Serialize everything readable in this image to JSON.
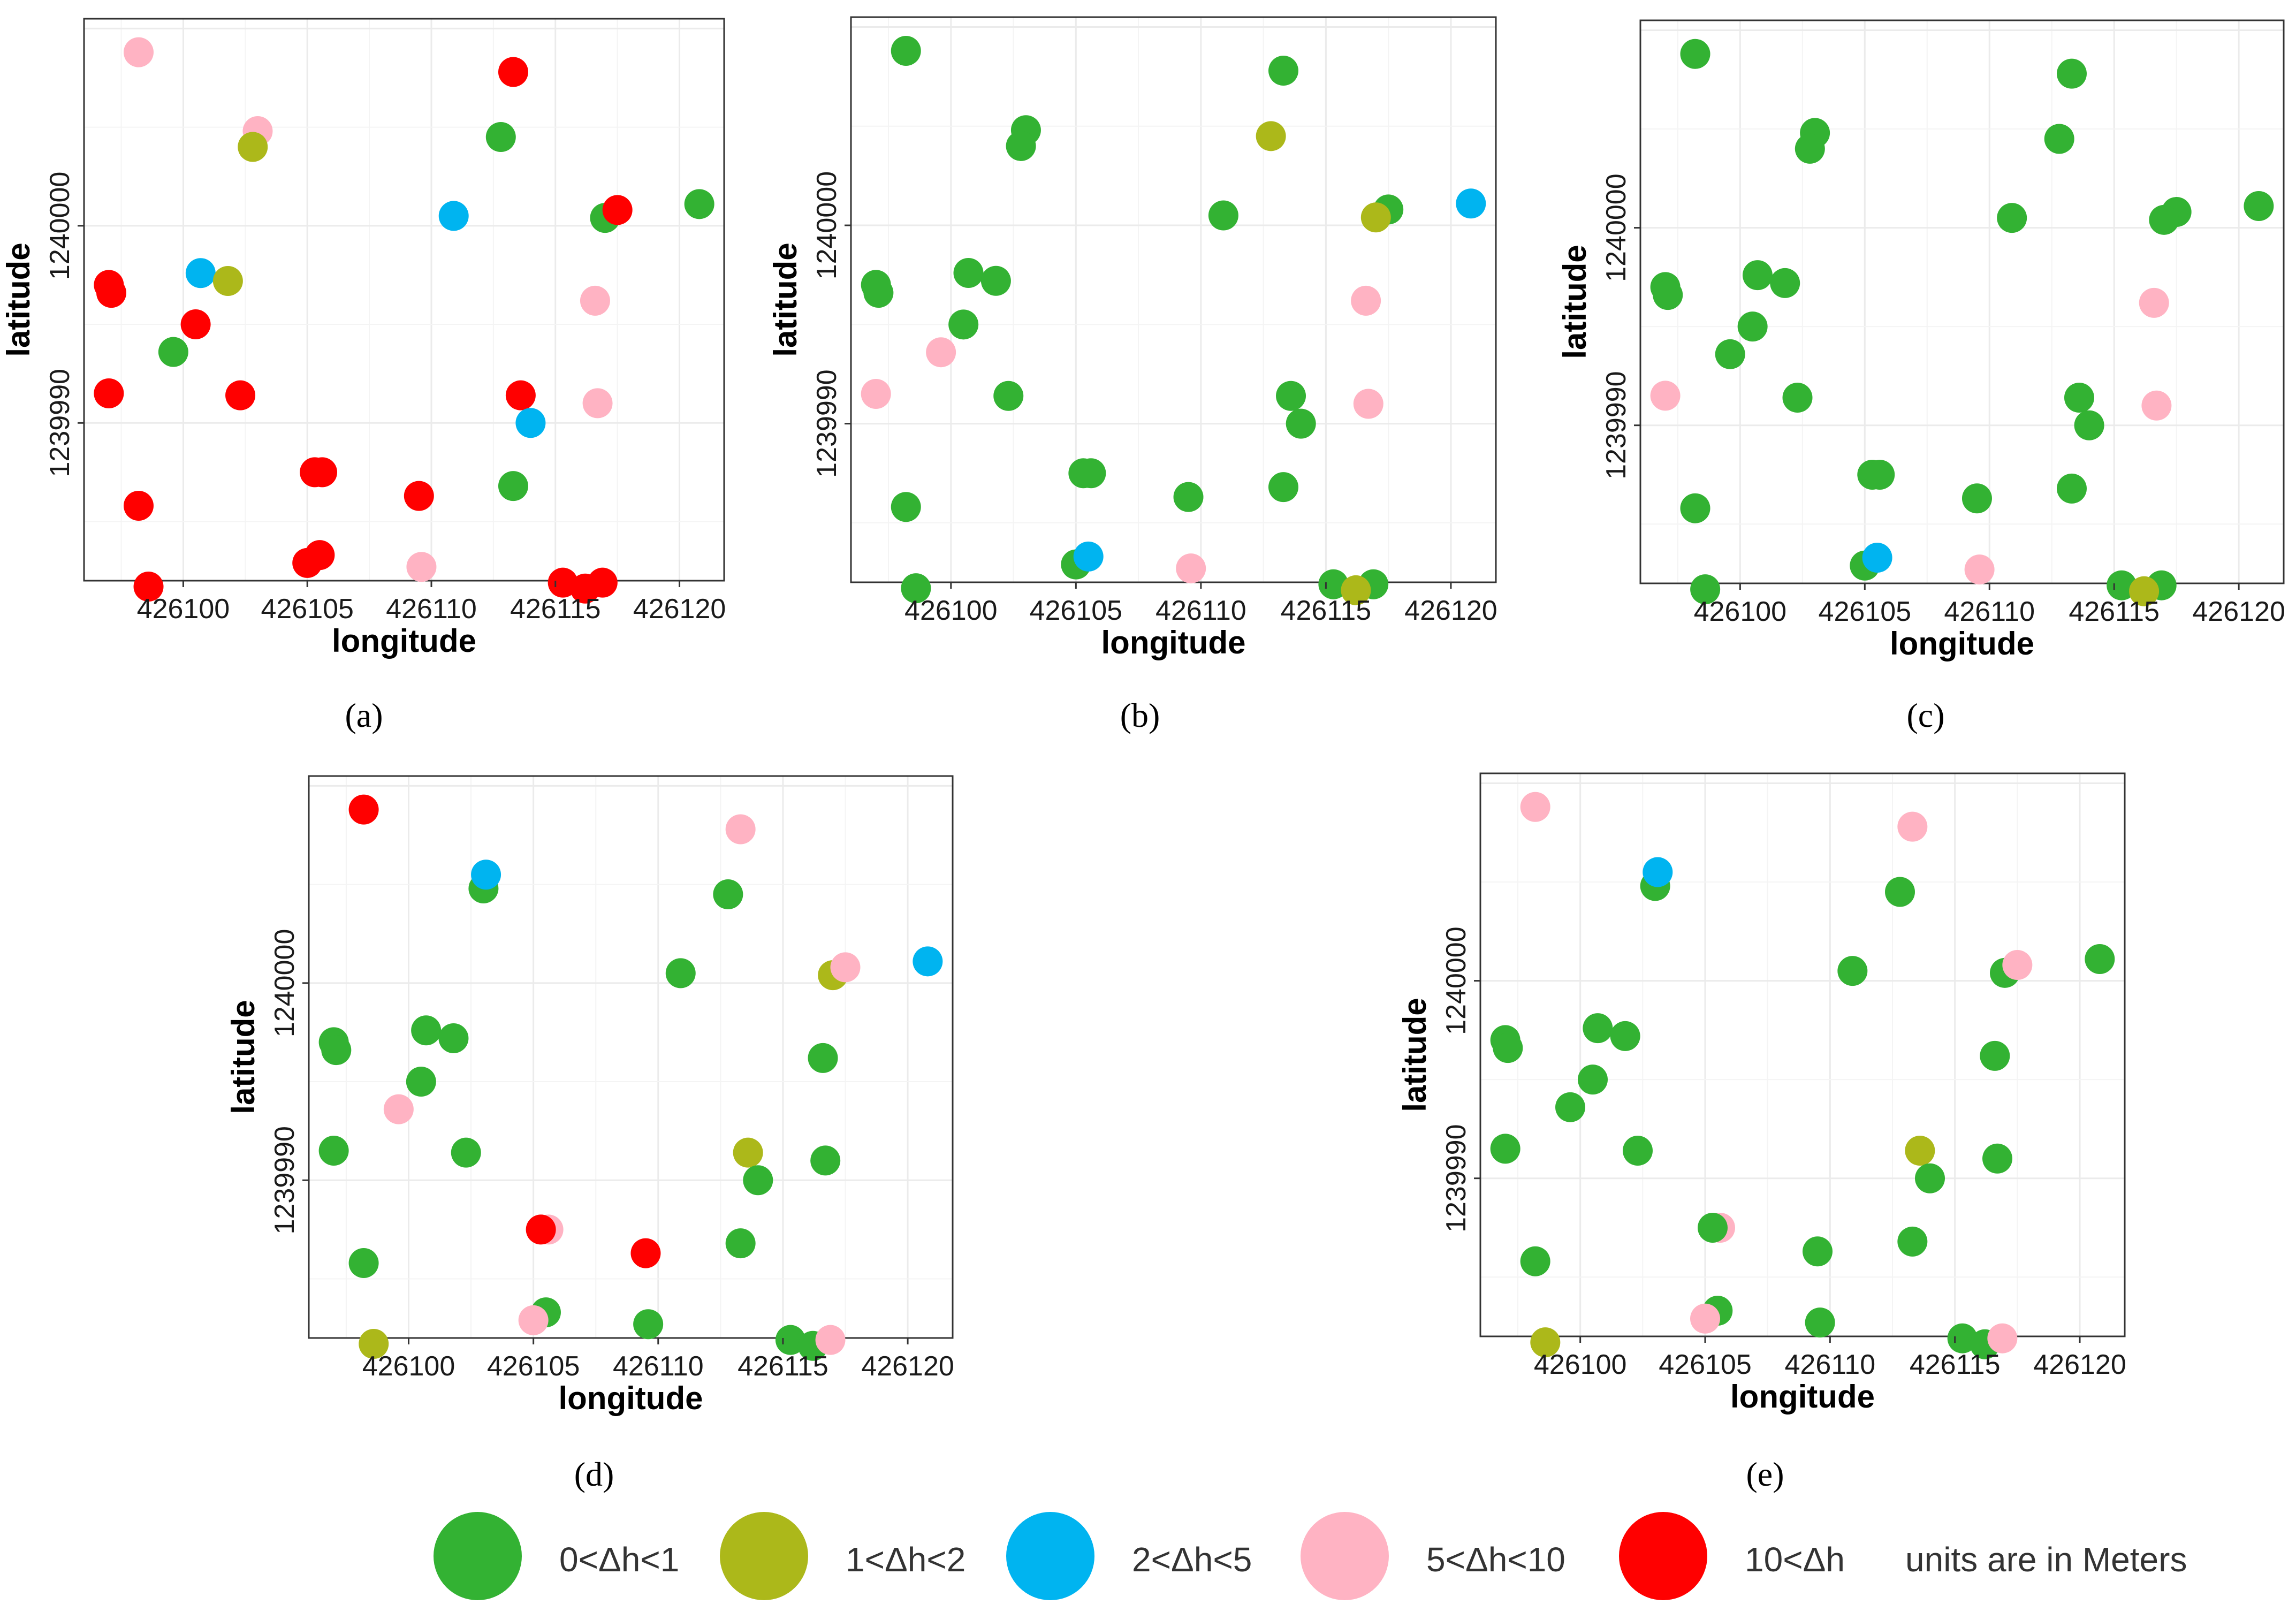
{
  "colors": {
    "c1": "#33b233",
    "c2": "#acb81a",
    "c3": "#00b4f0",
    "c4": "#ffb3c3",
    "c5": "#ff0000"
  },
  "legend": {
    "items": [
      {
        "key": "c1",
        "label": "0<Δh<1"
      },
      {
        "key": "c2",
        "label": "1<Δh<2"
      },
      {
        "key": "c3",
        "label": "2<Δh<5"
      },
      {
        "key": "c4",
        "label": "5<Δh<10"
      },
      {
        "key": "c5",
        "label": "10<Δh"
      }
    ],
    "note": "units are in Meters"
  },
  "chart_data": [
    {
      "type": "scatter",
      "panel": "(a)",
      "xlabel": "longitude",
      "ylabel": "latitude",
      "xticks": [
        "426100",
        "426105",
        "426110",
        "426115",
        "426120"
      ],
      "yticks": [
        "1239990",
        "1240000"
      ],
      "xlim": [
        426096.0,
        426121.8
      ],
      "ylim": [
        1239982.0,
        1240010.5
      ],
      "grid": true,
      "points": [
        {
          "x": 426098.2,
          "y": 1240008.8,
          "c": "c4"
        },
        {
          "x": 426113.3,
          "y": 1240007.8,
          "c": "c5"
        },
        {
          "x": 426103.0,
          "y": 1240004.8,
          "c": "c4"
        },
        {
          "x": 426102.8,
          "y": 1240004.0,
          "c": "c2"
        },
        {
          "x": 426112.8,
          "y": 1240004.5,
          "c": "c1"
        },
        {
          "x": 426120.8,
          "y": 1240001.1,
          "c": "c1"
        },
        {
          "x": 426117.0,
          "y": 1240000.4,
          "c": "c1"
        },
        {
          "x": 426117.5,
          "y": 1240000.8,
          "c": "c5"
        },
        {
          "x": 426110.9,
          "y": 1240000.5,
          "c": "c3"
        },
        {
          "x": 426100.7,
          "y": 1239997.6,
          "c": "c3"
        },
        {
          "x": 426101.8,
          "y": 1239997.2,
          "c": "c2"
        },
        {
          "x": 426097.0,
          "y": 1239997.0,
          "c": "c5"
        },
        {
          "x": 426097.1,
          "y": 1239996.6,
          "c": "c5"
        },
        {
          "x": 426116.6,
          "y": 1239996.2,
          "c": "c4"
        },
        {
          "x": 426100.5,
          "y": 1239995.0,
          "c": "c5"
        },
        {
          "x": 426099.6,
          "y": 1239993.6,
          "c": "c1"
        },
        {
          "x": 426097.0,
          "y": 1239991.5,
          "c": "c5"
        },
        {
          "x": 426102.3,
          "y": 1239991.4,
          "c": "c5"
        },
        {
          "x": 426113.6,
          "y": 1239991.4,
          "c": "c5"
        },
        {
          "x": 426116.7,
          "y": 1239991.0,
          "c": "c4"
        },
        {
          "x": 426114.0,
          "y": 1239990.0,
          "c": "c3"
        },
        {
          "x": 426105.3,
          "y": 1239987.5,
          "c": "c5"
        },
        {
          "x": 426105.6,
          "y": 1239987.5,
          "c": "c5"
        },
        {
          "x": 426113.3,
          "y": 1239986.8,
          "c": "c1"
        },
        {
          "x": 426109.5,
          "y": 1239986.3,
          "c": "c5"
        },
        {
          "x": 426098.2,
          "y": 1239985.8,
          "c": "c5"
        },
        {
          "x": 426105.5,
          "y": 1239983.3,
          "c": "c5"
        },
        {
          "x": 426105.0,
          "y": 1239982.9,
          "c": "c5"
        },
        {
          "x": 426109.6,
          "y": 1239982.7,
          "c": "c4"
        },
        {
          "x": 426115.3,
          "y": 1239981.9,
          "c": "c5"
        },
        {
          "x": 426116.2,
          "y": 1239981.6,
          "c": "c5"
        },
        {
          "x": 426116.9,
          "y": 1239981.9,
          "c": "c5"
        },
        {
          "x": 426098.6,
          "y": 1239981.7,
          "c": "c5"
        }
      ]
    },
    {
      "type": "scatter",
      "panel": "(b)",
      "xlabel": "longitude",
      "ylabel": "latitude",
      "xticks": [
        "426100",
        "426105",
        "426110",
        "426115",
        "426120"
      ],
      "yticks": [
        "1239990",
        "1240000"
      ],
      "xlim": [
        426096.0,
        426121.8
      ],
      "ylim": [
        1239982.0,
        1240010.5
      ],
      "grid": true,
      "points": [
        {
          "x": 426098.2,
          "y": 1240008.8,
          "c": "c1"
        },
        {
          "x": 426113.3,
          "y": 1240007.8,
          "c": "c1"
        },
        {
          "x": 426103.0,
          "y": 1240004.8,
          "c": "c1"
        },
        {
          "x": 426102.8,
          "y": 1240004.0,
          "c": "c1"
        },
        {
          "x": 426112.8,
          "y": 1240004.5,
          "c": "c2"
        },
        {
          "x": 426120.8,
          "y": 1240001.1,
          "c": "c3"
        },
        {
          "x": 426117.5,
          "y": 1240000.8,
          "c": "c1"
        },
        {
          "x": 426117.0,
          "y": 1240000.4,
          "c": "c2"
        },
        {
          "x": 426110.9,
          "y": 1240000.5,
          "c": "c1"
        },
        {
          "x": 426100.7,
          "y": 1239997.6,
          "c": "c1"
        },
        {
          "x": 426101.8,
          "y": 1239997.2,
          "c": "c1"
        },
        {
          "x": 426097.0,
          "y": 1239997.0,
          "c": "c1"
        },
        {
          "x": 426097.1,
          "y": 1239996.6,
          "c": "c1"
        },
        {
          "x": 426116.6,
          "y": 1239996.2,
          "c": "c4"
        },
        {
          "x": 426100.5,
          "y": 1239995.0,
          "c": "c1"
        },
        {
          "x": 426099.6,
          "y": 1239993.6,
          "c": "c4"
        },
        {
          "x": 426097.0,
          "y": 1239991.5,
          "c": "c4"
        },
        {
          "x": 426102.3,
          "y": 1239991.4,
          "c": "c1"
        },
        {
          "x": 426113.6,
          "y": 1239991.4,
          "c": "c1"
        },
        {
          "x": 426116.7,
          "y": 1239991.0,
          "c": "c4"
        },
        {
          "x": 426114.0,
          "y": 1239990.0,
          "c": "c1"
        },
        {
          "x": 426105.3,
          "y": 1239987.5,
          "c": "c1"
        },
        {
          "x": 426105.6,
          "y": 1239987.5,
          "c": "c1"
        },
        {
          "x": 426113.3,
          "y": 1239986.8,
          "c": "c1"
        },
        {
          "x": 426109.5,
          "y": 1239986.3,
          "c": "c1"
        },
        {
          "x": 426098.2,
          "y": 1239985.8,
          "c": "c1"
        },
        {
          "x": 426105.0,
          "y": 1239982.9,
          "c": "c1"
        },
        {
          "x": 426105.5,
          "y": 1239983.3,
          "c": "c3"
        },
        {
          "x": 426109.6,
          "y": 1239982.7,
          "c": "c4"
        },
        {
          "x": 426115.3,
          "y": 1239981.9,
          "c": "c1"
        },
        {
          "x": 426116.9,
          "y": 1239981.9,
          "c": "c1"
        },
        {
          "x": 426116.2,
          "y": 1239981.6,
          "c": "c2"
        },
        {
          "x": 426098.6,
          "y": 1239981.7,
          "c": "c1"
        }
      ]
    },
    {
      "type": "scatter",
      "panel": "(c)",
      "xlabel": "longitude",
      "ylabel": "latitude",
      "xticks": [
        "426100",
        "426105",
        "426110",
        "426115",
        "426120"
      ],
      "yticks": [
        "1239990",
        "1240000"
      ],
      "xlim": [
        426096.0,
        426121.8
      ],
      "ylim": [
        1239982.0,
        1240010.5
      ],
      "grid": true,
      "points": [
        {
          "x": 426098.2,
          "y": 1240008.8,
          "c": "c1"
        },
        {
          "x": 426113.3,
          "y": 1240007.8,
          "c": "c1"
        },
        {
          "x": 426103.0,
          "y": 1240004.8,
          "c": "c1"
        },
        {
          "x": 426102.8,
          "y": 1240004.0,
          "c": "c1"
        },
        {
          "x": 426112.8,
          "y": 1240004.5,
          "c": "c1"
        },
        {
          "x": 426120.8,
          "y": 1240001.1,
          "c": "c1"
        },
        {
          "x": 426117.5,
          "y": 1240000.8,
          "c": "c1"
        },
        {
          "x": 426117.0,
          "y": 1240000.4,
          "c": "c1"
        },
        {
          "x": 426110.9,
          "y": 1240000.5,
          "c": "c1"
        },
        {
          "x": 426100.7,
          "y": 1239997.6,
          "c": "c1"
        },
        {
          "x": 426101.8,
          "y": 1239997.2,
          "c": "c1"
        },
        {
          "x": 426097.0,
          "y": 1239997.0,
          "c": "c1"
        },
        {
          "x": 426097.1,
          "y": 1239996.6,
          "c": "c1"
        },
        {
          "x": 426116.6,
          "y": 1239996.2,
          "c": "c4"
        },
        {
          "x": 426100.5,
          "y": 1239995.0,
          "c": "c1"
        },
        {
          "x": 426099.6,
          "y": 1239993.6,
          "c": "c1"
        },
        {
          "x": 426097.0,
          "y": 1239991.5,
          "c": "c4"
        },
        {
          "x": 426102.3,
          "y": 1239991.4,
          "c": "c1"
        },
        {
          "x": 426113.6,
          "y": 1239991.4,
          "c": "c1"
        },
        {
          "x": 426116.7,
          "y": 1239991.0,
          "c": "c4"
        },
        {
          "x": 426114.0,
          "y": 1239990.0,
          "c": "c1"
        },
        {
          "x": 426105.3,
          "y": 1239987.5,
          "c": "c1"
        },
        {
          "x": 426105.6,
          "y": 1239987.5,
          "c": "c1"
        },
        {
          "x": 426113.3,
          "y": 1239986.8,
          "c": "c1"
        },
        {
          "x": 426109.5,
          "y": 1239986.3,
          "c": "c1"
        },
        {
          "x": 426098.2,
          "y": 1239985.8,
          "c": "c1"
        },
        {
          "x": 426105.0,
          "y": 1239982.9,
          "c": "c1"
        },
        {
          "x": 426105.5,
          "y": 1239983.3,
          "c": "c3"
        },
        {
          "x": 426109.6,
          "y": 1239982.7,
          "c": "c4"
        },
        {
          "x": 426115.3,
          "y": 1239981.9,
          "c": "c1"
        },
        {
          "x": 426116.9,
          "y": 1239981.9,
          "c": "c1"
        },
        {
          "x": 426116.2,
          "y": 1239981.6,
          "c": "c2"
        },
        {
          "x": 426098.6,
          "y": 1239981.7,
          "c": "c1"
        }
      ]
    },
    {
      "type": "scatter",
      "panel": "(d)",
      "xlabel": "longitude",
      "ylabel": "latitude",
      "xticks": [
        "426100",
        "426105",
        "426110",
        "426115",
        "426120"
      ],
      "yticks": [
        "1239990",
        "1240000"
      ],
      "xlim": [
        426096.0,
        426121.8
      ],
      "ylim": [
        1239982.0,
        1240010.5
      ],
      "grid": true,
      "points": [
        {
          "x": 426098.2,
          "y": 1240008.8,
          "c": "c5"
        },
        {
          "x": 426113.3,
          "y": 1240007.8,
          "c": "c4"
        },
        {
          "x": 426103.0,
          "y": 1240004.8,
          "c": "c1"
        },
        {
          "x": 426103.1,
          "y": 1240005.5,
          "c": "c3"
        },
        {
          "x": 426112.8,
          "y": 1240004.5,
          "c": "c1"
        },
        {
          "x": 426120.8,
          "y": 1240001.1,
          "c": "c3"
        },
        {
          "x": 426117.0,
          "y": 1240000.4,
          "c": "c2"
        },
        {
          "x": 426117.5,
          "y": 1240000.8,
          "c": "c4"
        },
        {
          "x": 426110.9,
          "y": 1240000.5,
          "c": "c1"
        },
        {
          "x": 426100.7,
          "y": 1239997.6,
          "c": "c1"
        },
        {
          "x": 426101.8,
          "y": 1239997.2,
          "c": "c1"
        },
        {
          "x": 426097.0,
          "y": 1239997.0,
          "c": "c1"
        },
        {
          "x": 426097.1,
          "y": 1239996.6,
          "c": "c1"
        },
        {
          "x": 426116.6,
          "y": 1239996.2,
          "c": "c1"
        },
        {
          "x": 426100.5,
          "y": 1239995.0,
          "c": "c1"
        },
        {
          "x": 426099.6,
          "y": 1239993.6,
          "c": "c4"
        },
        {
          "x": 426097.0,
          "y": 1239991.5,
          "c": "c1"
        },
        {
          "x": 426102.3,
          "y": 1239991.4,
          "c": "c1"
        },
        {
          "x": 426113.6,
          "y": 1239991.4,
          "c": "c2"
        },
        {
          "x": 426116.7,
          "y": 1239991.0,
          "c": "c1"
        },
        {
          "x": 426114.0,
          "y": 1239990.0,
          "c": "c1"
        },
        {
          "x": 426105.6,
          "y": 1239987.5,
          "c": "c4"
        },
        {
          "x": 426105.3,
          "y": 1239987.5,
          "c": "c5"
        },
        {
          "x": 426113.3,
          "y": 1239986.8,
          "c": "c1"
        },
        {
          "x": 426109.5,
          "y": 1239986.3,
          "c": "c5"
        },
        {
          "x": 426098.2,
          "y": 1239985.8,
          "c": "c1"
        },
        {
          "x": 426105.5,
          "y": 1239983.3,
          "c": "c1"
        },
        {
          "x": 426105.0,
          "y": 1239982.9,
          "c": "c4"
        },
        {
          "x": 426109.6,
          "y": 1239982.7,
          "c": "c1"
        },
        {
          "x": 426115.3,
          "y": 1239981.9,
          "c": "c1"
        },
        {
          "x": 426116.2,
          "y": 1239981.6,
          "c": "c1"
        },
        {
          "x": 426116.9,
          "y": 1239981.9,
          "c": "c4"
        },
        {
          "x": 426098.6,
          "y": 1239981.7,
          "c": "c2"
        }
      ]
    },
    {
      "type": "scatter",
      "panel": "(e)",
      "xlabel": "longitude",
      "ylabel": "latitude",
      "xticks": [
        "426100",
        "426105",
        "426110",
        "426115",
        "426120"
      ],
      "yticks": [
        "1239990",
        "1240000"
      ],
      "xlim": [
        426096.0,
        426121.8
      ],
      "ylim": [
        1239982.0,
        1240010.5
      ],
      "grid": true,
      "points": [
        {
          "x": 426098.2,
          "y": 1240008.8,
          "c": "c4"
        },
        {
          "x": 426113.3,
          "y": 1240007.8,
          "c": "c4"
        },
        {
          "x": 426103.0,
          "y": 1240004.8,
          "c": "c1"
        },
        {
          "x": 426103.1,
          "y": 1240005.5,
          "c": "c3"
        },
        {
          "x": 426112.8,
          "y": 1240004.5,
          "c": "c1"
        },
        {
          "x": 426120.8,
          "y": 1240001.1,
          "c": "c1"
        },
        {
          "x": 426117.0,
          "y": 1240000.4,
          "c": "c1"
        },
        {
          "x": 426117.5,
          "y": 1240000.8,
          "c": "c4"
        },
        {
          "x": 426110.9,
          "y": 1240000.5,
          "c": "c1"
        },
        {
          "x": 426100.7,
          "y": 1239997.6,
          "c": "c1"
        },
        {
          "x": 426101.8,
          "y": 1239997.2,
          "c": "c1"
        },
        {
          "x": 426097.0,
          "y": 1239997.0,
          "c": "c1"
        },
        {
          "x": 426097.1,
          "y": 1239996.6,
          "c": "c1"
        },
        {
          "x": 426116.6,
          "y": 1239996.2,
          "c": "c1"
        },
        {
          "x": 426100.5,
          "y": 1239995.0,
          "c": "c1"
        },
        {
          "x": 426099.6,
          "y": 1239993.6,
          "c": "c1"
        },
        {
          "x": 426097.0,
          "y": 1239991.5,
          "c": "c1"
        },
        {
          "x": 426102.3,
          "y": 1239991.4,
          "c": "c1"
        },
        {
          "x": 426113.6,
          "y": 1239991.4,
          "c": "c2"
        },
        {
          "x": 426116.7,
          "y": 1239991.0,
          "c": "c1"
        },
        {
          "x": 426114.0,
          "y": 1239990.0,
          "c": "c1"
        },
        {
          "x": 426105.6,
          "y": 1239987.5,
          "c": "c4"
        },
        {
          "x": 426105.3,
          "y": 1239987.5,
          "c": "c1"
        },
        {
          "x": 426113.3,
          "y": 1239986.8,
          "c": "c1"
        },
        {
          "x": 426109.5,
          "y": 1239986.3,
          "c": "c1"
        },
        {
          "x": 426098.2,
          "y": 1239985.8,
          "c": "c1"
        },
        {
          "x": 426105.5,
          "y": 1239983.3,
          "c": "c1"
        },
        {
          "x": 426105.0,
          "y": 1239982.9,
          "c": "c4"
        },
        {
          "x": 426109.6,
          "y": 1239982.7,
          "c": "c1"
        },
        {
          "x": 426115.3,
          "y": 1239981.9,
          "c": "c1"
        },
        {
          "x": 426116.2,
          "y": 1239981.6,
          "c": "c1"
        },
        {
          "x": 426116.9,
          "y": 1239981.9,
          "c": "c4"
        },
        {
          "x": 426098.6,
          "y": 1239981.7,
          "c": "c2"
        }
      ]
    }
  ]
}
